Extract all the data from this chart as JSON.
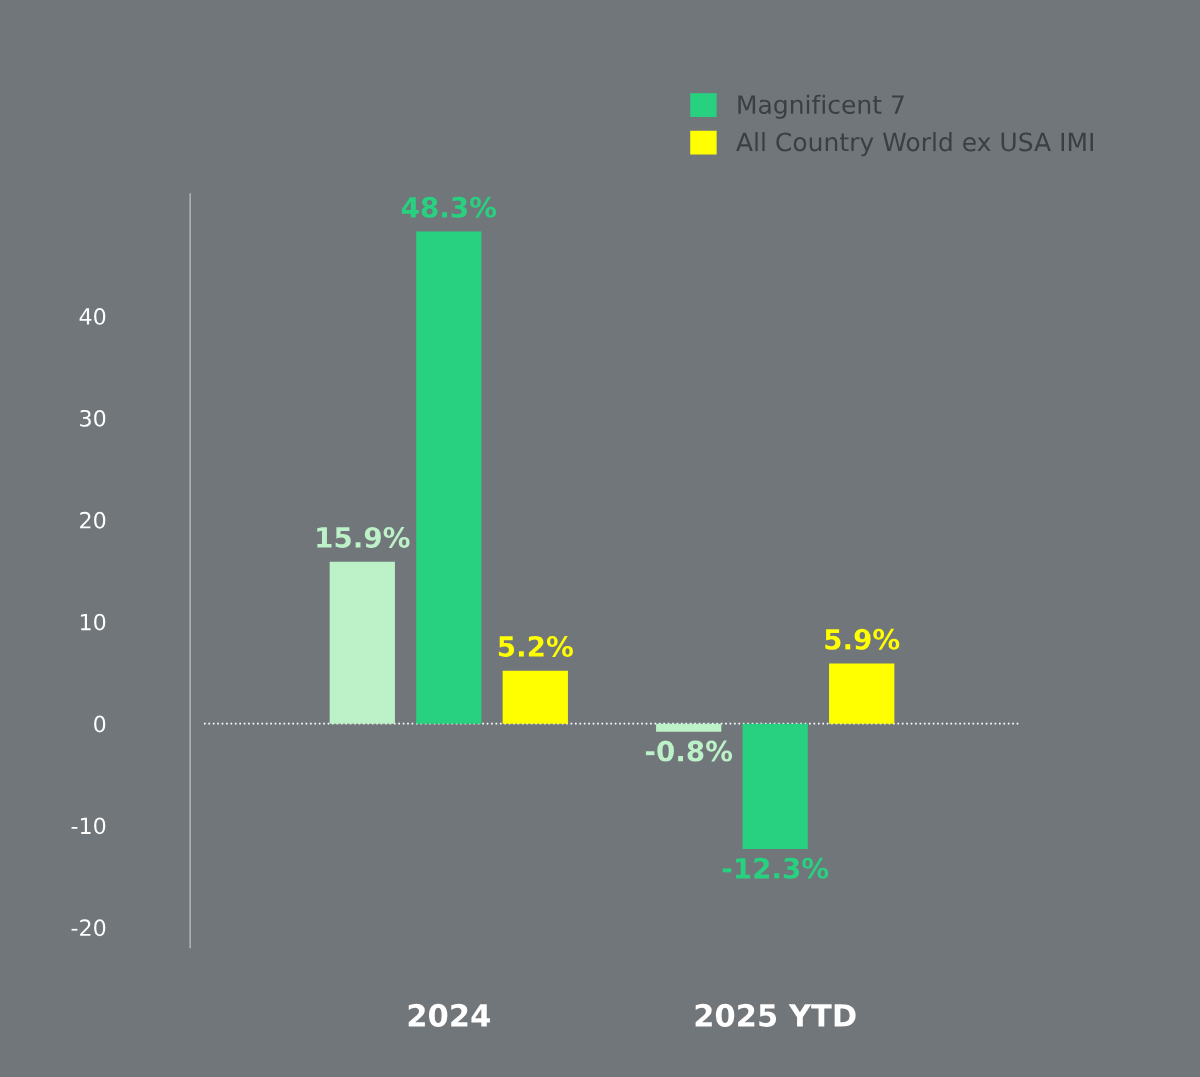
{
  "chart_data": {
    "type": "bar",
    "categories": [
      "2024",
      "2025 YTD"
    ],
    "series": [
      {
        "color": "#bdf2c9",
        "values": [
          15.9,
          -0.8
        ],
        "value_labels": [
          "15.9%",
          "-0.8%"
        ]
      },
      {
        "name": "Magnificent 7",
        "color": "#27d17f",
        "values": [
          48.3,
          -12.3
        ],
        "value_labels": [
          "48.3%",
          "-12.3%"
        ]
      },
      {
        "name": "All Country World ex USA IMI",
        "color": "#ffff00",
        "values": [
          5.2,
          5.9
        ],
        "value_labels": [
          "5.2%",
          "5.9%"
        ]
      }
    ],
    "ylim": [
      -22,
      52
    ],
    "yticks": [
      -20,
      -10,
      0,
      10,
      20,
      30,
      40
    ],
    "grid": false,
    "legend": "top right",
    "ref_lines": [
      {
        "axis": "y",
        "value": 0,
        "color": "#ffffff",
        "line_style": "dotted"
      }
    ]
  }
}
